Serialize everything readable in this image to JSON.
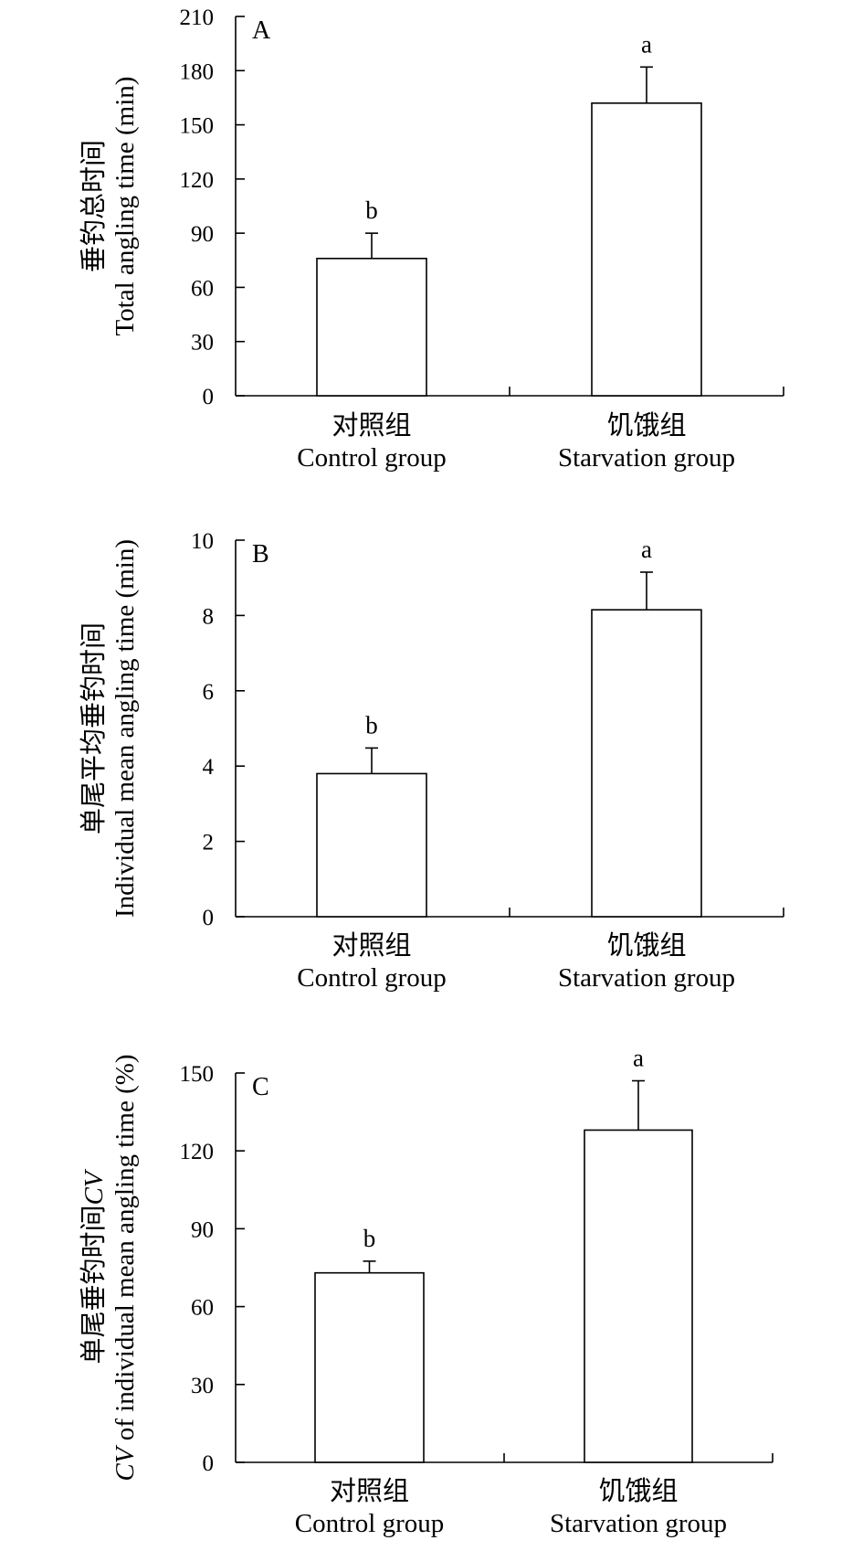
{
  "chart_data": [
    {
      "type": "bar",
      "panel_label": "A",
      "ylabel_cn": "垂钓总时间",
      "ylabel_en_italic": "",
      "ylabel_en": "Total angling time (min)",
      "categories": [
        {
          "cn": "对照组",
          "en": "Control group"
        },
        {
          "cn": "饥饿组",
          "en": "Starvation group"
        }
      ],
      "values": [
        76,
        162
      ],
      "errors": [
        14,
        20
      ],
      "significance": [
        "b",
        "a"
      ],
      "ylim": [
        0,
        210
      ],
      "yticks": [
        0,
        30,
        60,
        90,
        120,
        150,
        180,
        210
      ]
    },
    {
      "type": "bar",
      "panel_label": "B",
      "ylabel_cn": "单尾平均垂钓时间",
      "ylabel_en_italic": "",
      "ylabel_en": "Individual mean angling time (min)",
      "categories": [
        {
          "cn": "对照组",
          "en": "Control group"
        },
        {
          "cn": "饥饿组",
          "en": "Starvation group"
        }
      ],
      "values": [
        3.8,
        8.15
      ],
      "errors": [
        0.68,
        1.0
      ],
      "significance": [
        "b",
        "a"
      ],
      "ylim": [
        0,
        10
      ],
      "yticks": [
        0,
        2,
        4,
        6,
        8,
        10
      ]
    },
    {
      "type": "bar",
      "panel_label": "C",
      "ylabel_cn": "单尾垂钓时间CV",
      "ylabel_en_italic": "CV",
      "ylabel_en": " of individual mean angling time (%)",
      "categories": [
        {
          "cn": "对照组",
          "en": "Control group"
        },
        {
          "cn": "饥饿组",
          "en": "Starvation group"
        }
      ],
      "values": [
        73,
        128
      ],
      "errors": [
        4.5,
        19
      ],
      "significance": [
        "b",
        "a"
      ],
      "ylim": [
        0,
        150
      ],
      "yticks": [
        0,
        30,
        60,
        90,
        120,
        150
      ]
    }
  ]
}
